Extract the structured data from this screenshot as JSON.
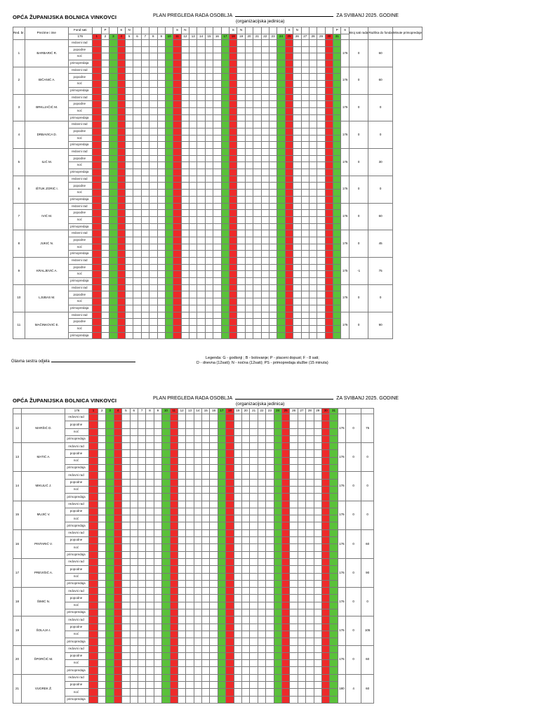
{
  "org_name": "OPĆA ŽUPANIJSKA BOLNICA VINKOVCI",
  "title_left": "PLAN PREGLEDA RADA OSOBLJA",
  "title_right": "ZA SVIBANJ 2025. GODINE",
  "subtitle": "(organizacijska jedinica)",
  "col_headers": {
    "rb": "Red. br.",
    "name": "Prezime i ime",
    "fond_sati": "Fond sati",
    "broj_sati": "Broj sati rada",
    "razlika": "Razlika do fonda",
    "minute": "Minute primopredaje"
  },
  "fond_value": "176",
  "days": [
    "1",
    "2",
    "3",
    "4",
    "5",
    "6",
    "7",
    "8",
    "9",
    "10",
    "11",
    "12",
    "13",
    "14",
    "15",
    "16",
    "17",
    "18",
    "19",
    "20",
    "21",
    "22",
    "23",
    "24",
    "25",
    "26",
    "27",
    "28",
    "29",
    "30",
    "31"
  ],
  "day_letters": {
    "1": "P",
    "3": "S",
    "4": "N",
    "10": "S",
    "11": "N",
    "17": "S",
    "18": "N",
    "24": "S",
    "25": "N",
    "30": "P",
    "31": "S"
  },
  "red_days": [
    1,
    4,
    11,
    18,
    25,
    30
  ],
  "green_days": [
    3,
    10,
    17,
    24,
    31
  ],
  "row_labels": [
    "redovni rad",
    "popodne",
    "noć",
    "primopredaja"
  ],
  "page1_staff": [
    {
      "no": "1",
      "name": "BARBARIĆ R.",
      "hours": "176",
      "diff": "0",
      "min": "60"
    },
    {
      "no": "2",
      "name": "BIČANIĆ A.",
      "hours": "176",
      "diff": "0",
      "min": "60"
    },
    {
      "no": "3",
      "name": "BRKLJAČIĆ M.",
      "hours": "176",
      "diff": "0",
      "min": "0"
    },
    {
      "no": "4",
      "name": "DRBAVICA D.",
      "hours": "176",
      "diff": "0",
      "min": "0"
    },
    {
      "no": "5",
      "name": "ILIĆ M.",
      "hours": "176",
      "diff": "0",
      "min": "30"
    },
    {
      "no": "6",
      "name": "IŠTUK ZORIĆ I.",
      "hours": "176",
      "diff": "0",
      "min": "0"
    },
    {
      "no": "7",
      "name": "IVIĆ M.",
      "hours": "176",
      "diff": "0",
      "min": "60"
    },
    {
      "no": "8",
      "name": "JUKIĆ N.",
      "hours": "176",
      "diff": "0",
      "min": "45"
    },
    {
      "no": "9",
      "name": "KRALJEVIĆ A.",
      "hours": "175",
      "diff": "-1",
      "min": "75"
    },
    {
      "no": "10",
      "name": "LJUBAS M.",
      "hours": "176",
      "diff": "0",
      "min": "0"
    },
    {
      "no": "11",
      "name": "MAČINKOVIĆ E.",
      "hours": "176",
      "diff": "0",
      "min": "90"
    }
  ],
  "page2_staff": [
    {
      "no": "12",
      "name": "MARŠIĆ D.",
      "hours": "176",
      "diff": "0",
      "min": "75"
    },
    {
      "no": "13",
      "name": "MATIĆ A.",
      "hours": "176",
      "diff": "0",
      "min": "0"
    },
    {
      "no": "14",
      "name": "MIKULIĆ J.",
      "hours": "176",
      "diff": "0",
      "min": "0"
    },
    {
      "no": "15",
      "name": "MUJIĆ V.",
      "hours": "176",
      "diff": "0",
      "min": "0"
    },
    {
      "no": "16",
      "name": "PINTARIĆ V.",
      "hours": "176",
      "diff": "0",
      "min": "60"
    },
    {
      "no": "17",
      "name": "PREVIŠIĆ A.",
      "hours": "176",
      "diff": "0",
      "min": "90"
    },
    {
      "no": "18",
      "name": "ŠIMIĆ N.",
      "hours": "176",
      "diff": "0",
      "min": "0"
    },
    {
      "no": "19",
      "name": "ŠOLAJA I.",
      "hours": "176",
      "diff": "0",
      "min": "105"
    },
    {
      "no": "20",
      "name": "ŠPORČIĆ M.",
      "hours": "176",
      "diff": "0",
      "min": "60"
    },
    {
      "no": "21",
      "name": "VUGREK Ž.",
      "hours": "180",
      "diff": "4",
      "min": "60"
    }
  ],
  "footer_signature": "Glavna sestra odjela",
  "legend_line1": "Legenda: G - godisnji ; B - bolovanje; P - placeni dopust; F - 8 sati;",
  "legend_line2": "D - dnevna (12sati); N - noćna (12sati); PS - primopredaja službe (15 minuta)",
  "colors": {
    "weekend_red": "#ee2a2a",
    "sunday_green": "#5ac13a",
    "ps_blue": "#9cc3e6",
    "vacation_yellow": "#fbd36a",
    "orange": "#f5a800"
  }
}
